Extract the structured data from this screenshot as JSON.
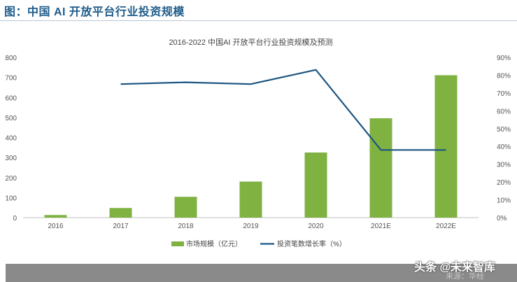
{
  "figure_title": "图：中国 AI 开放平台行业投资规模",
  "footer": {
    "source_text": "来源：华经",
    "watermark": "头条 @未来智库"
  },
  "chart_data": {
    "type": "bar+line",
    "title": "2016-2022 中国AI 开放平台行业投资规模及预测",
    "categories": [
      "2016",
      "2017",
      "2018",
      "2019",
      "2020",
      "2021E",
      "2022E"
    ],
    "series": [
      {
        "name": "市场规模（亿元）",
        "type": "bar",
        "axis": "left",
        "color": "#7fb241",
        "values": [
          13,
          48,
          104,
          180,
          325,
          496,
          711
        ]
      },
      {
        "name": "投资笔数增长率（%）",
        "type": "line",
        "axis": "right",
        "color": "#1b5683",
        "values": [
          null,
          75,
          76,
          75,
          83,
          38,
          38
        ]
      }
    ],
    "y_left": {
      "min": 0,
      "max": 800,
      "ticks": [
        "0",
        "100",
        "200",
        "300",
        "400",
        "500",
        "600",
        "700",
        "800"
      ]
    },
    "y_right": {
      "min": 0,
      "max": 90,
      "ticks": [
        "0%",
        "10%",
        "20%",
        "30%",
        "40%",
        "50%",
        "60%",
        "70%",
        "80%",
        "90%"
      ]
    },
    "legend": "bottom-center"
  }
}
